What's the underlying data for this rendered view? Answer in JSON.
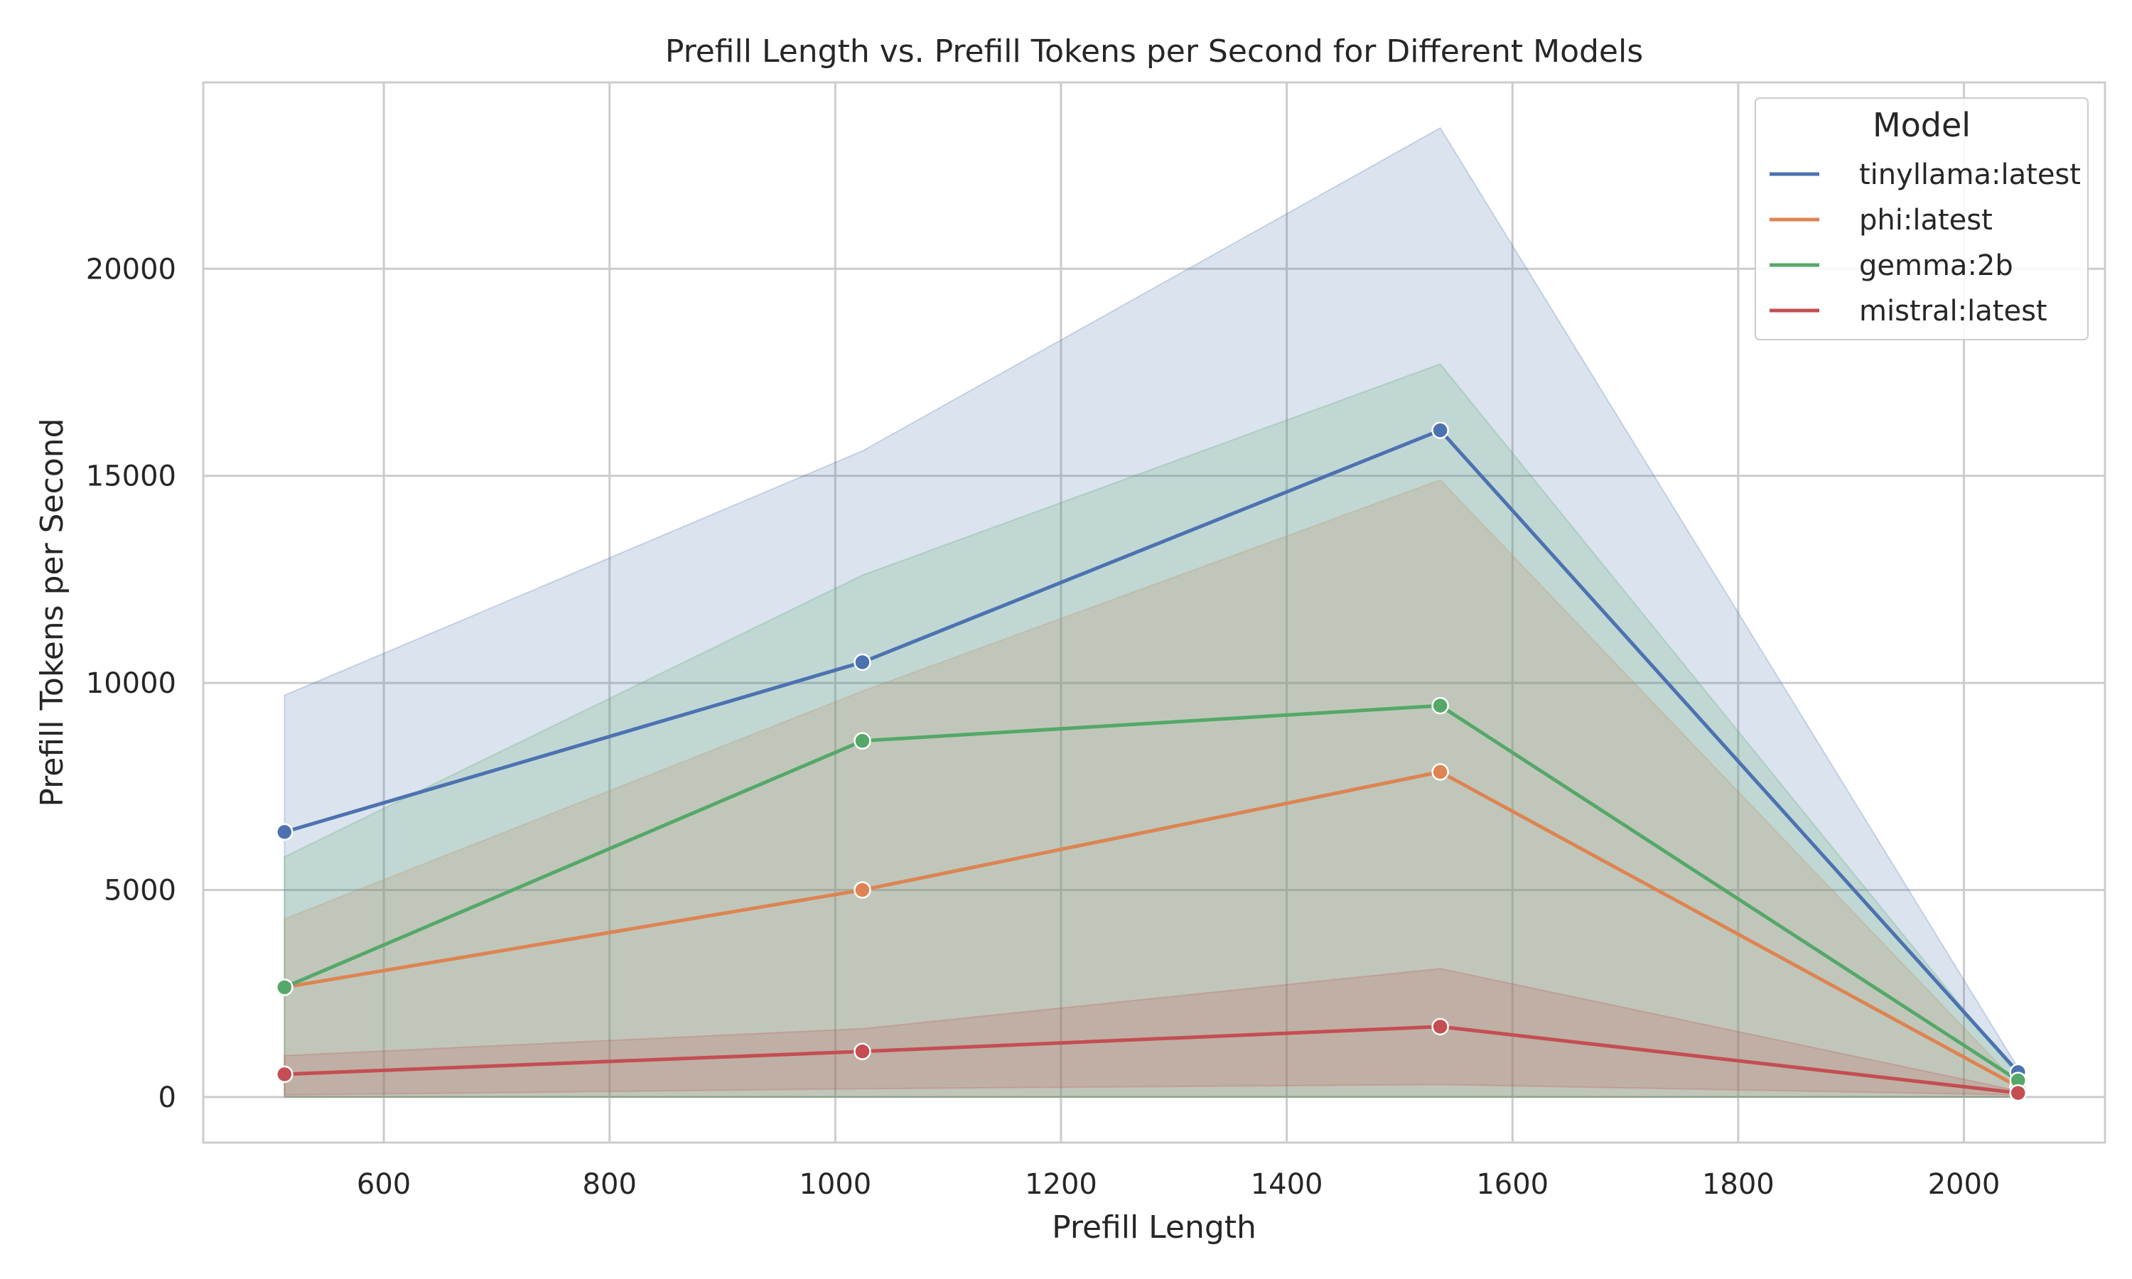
{
  "chart_data": {
    "type": "line",
    "title": "Prefill Length vs. Prefill Tokens per Second for Different Models",
    "xlabel": "Prefill Length",
    "ylabel": "Prefill Tokens per Second",
    "xlim": [
      440,
      2125
    ],
    "ylim": [
      -1100,
      24500
    ],
    "xticks": [
      600,
      800,
      1000,
      1200,
      1400,
      1600,
      1800,
      2000
    ],
    "yticks": [
      0,
      5000,
      10000,
      15000,
      20000
    ],
    "grid": true,
    "legend": {
      "title": "Model",
      "placement": "top-right"
    },
    "x": [
      512,
      1024,
      1536,
      2048
    ],
    "series": [
      {
        "name": "tinyllama:latest",
        "color": "#4c72b0",
        "values": [
          6400,
          10500,
          16100,
          600
        ],
        "ci_low": [
          0,
          0,
          0,
          0
        ],
        "ci_high": [
          9700,
          15600,
          23400,
          700
        ]
      },
      {
        "name": "phi:latest",
        "color": "#dd8452",
        "values": [
          2650,
          5000,
          7850,
          250
        ],
        "ci_low": [
          0,
          0,
          0,
          0
        ],
        "ci_high": [
          4300,
          9800,
          14900,
          300
        ]
      },
      {
        "name": "gemma:2b",
        "color": "#55a868",
        "values": [
          2650,
          8600,
          9450,
          400
        ],
        "ci_low": [
          0,
          0,
          0,
          0
        ],
        "ci_high": [
          5800,
          12600,
          17700,
          500
        ]
      },
      {
        "name": "mistral:latest",
        "color": "#c44e52",
        "values": [
          550,
          1100,
          1700,
          100
        ],
        "ci_low": [
          50,
          200,
          300,
          50
        ],
        "ci_high": [
          1000,
          1650,
          3100,
          150
        ]
      }
    ]
  }
}
